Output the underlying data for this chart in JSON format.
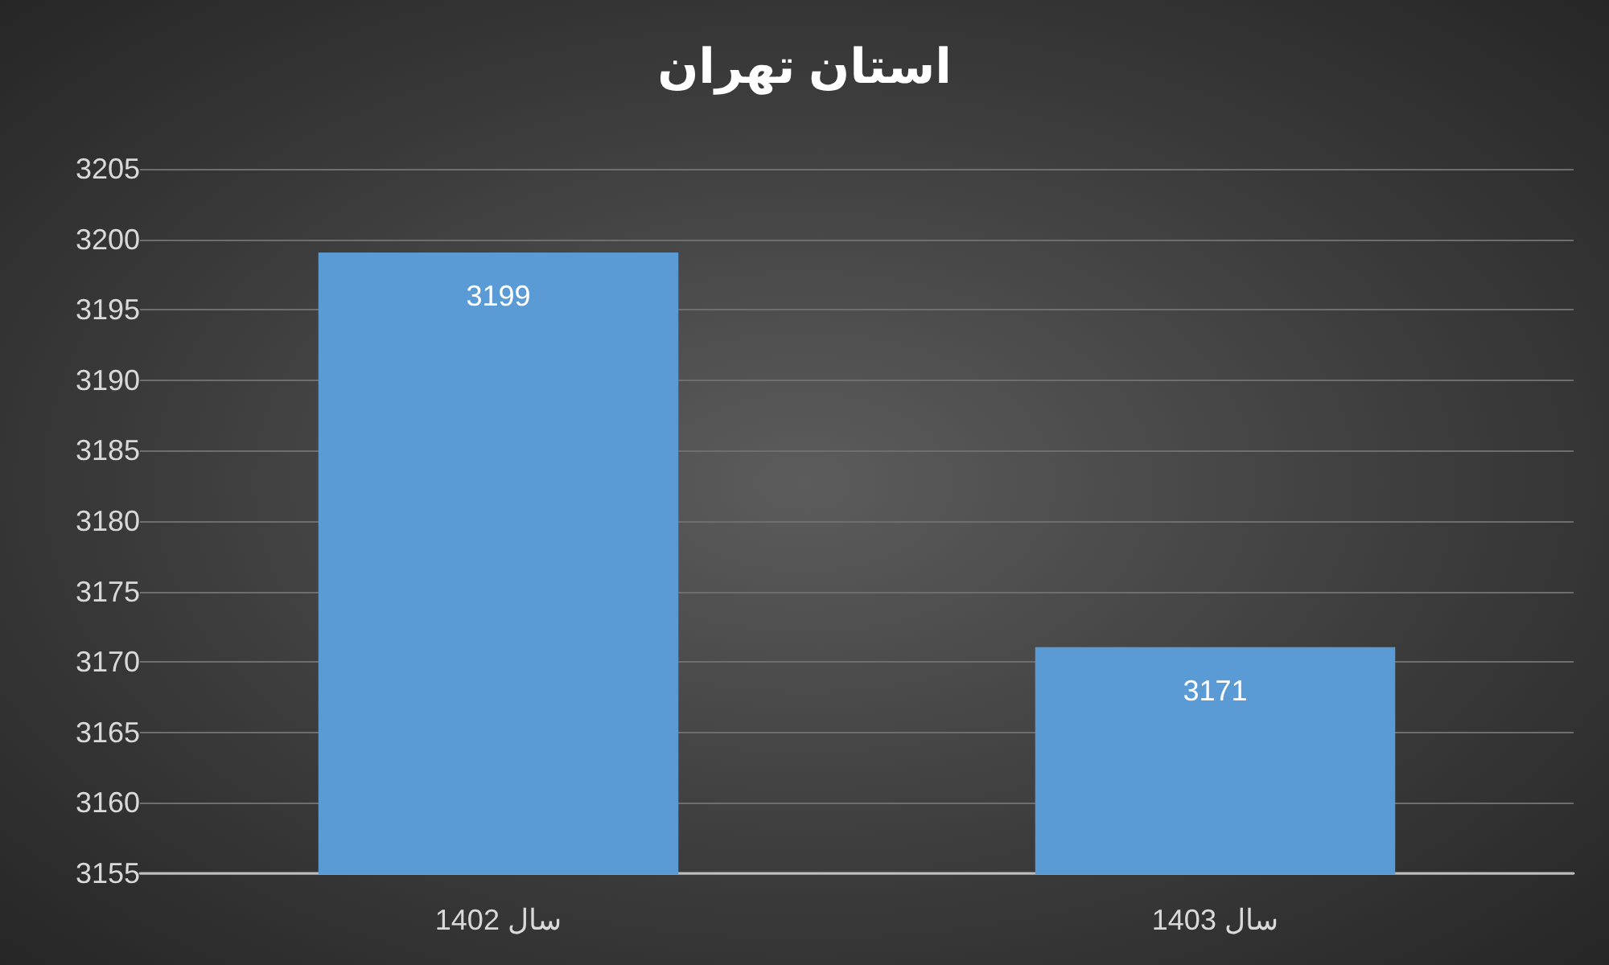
{
  "chart_data": {
    "type": "bar",
    "title": "استان تهران",
    "categories": [
      "سال 1402",
      "سال 1403"
    ],
    "values": [
      3199,
      3171
    ],
    "color": "#5b9bd5",
    "ylim": [
      3155,
      3205
    ],
    "yticks": [
      3155,
      3160,
      3165,
      3170,
      3175,
      3180,
      3185,
      3190,
      3195,
      3200,
      3205
    ],
    "grid": "y",
    "data_labels": true
  }
}
